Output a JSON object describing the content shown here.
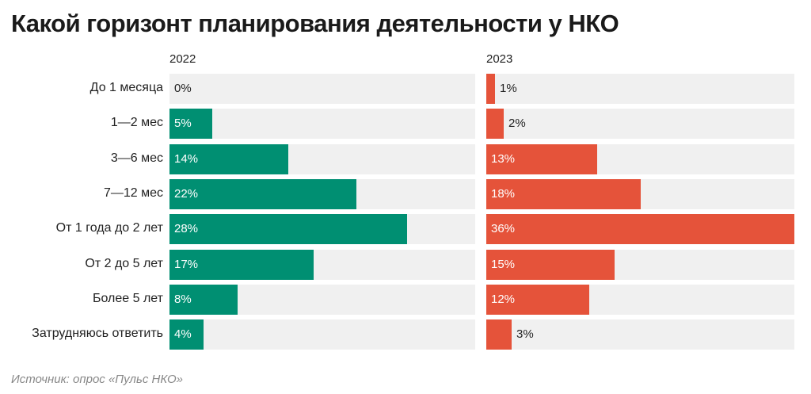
{
  "title": "Какой горизонт планирования деятельности у НКО",
  "source": "Источник: опрос «Пульс НКО»",
  "colors": {
    "2022": "#008f72",
    "2023": "#e5533a",
    "track": "#f0f0f0"
  },
  "chart_data": {
    "type": "bar",
    "orientation": "horizontal",
    "unit": "%",
    "xlim": [
      0,
      36
    ],
    "categories": [
      "До 1 месяца",
      "1—2 мес",
      "3—6 мес",
      "7—12 мес",
      "От 1 года до 2 лет",
      "От 2 до 5 лет",
      "Более 5 лет",
      "Затрудняюсь ответить"
    ],
    "series": [
      {
        "name": "2022",
        "values": [
          0,
          5,
          14,
          22,
          28,
          17,
          8,
          4
        ],
        "labels": [
          "0%",
          "5%",
          "14%",
          "22%",
          "28%",
          "17%",
          "8%",
          "4%"
        ]
      },
      {
        "name": "2023",
        "values": [
          1,
          2,
          13,
          18,
          36,
          15,
          12,
          3
        ],
        "labels": [
          "1%",
          "2%",
          "13%",
          "18%",
          "36%",
          "15%",
          "12%",
          "3%"
        ]
      }
    ]
  }
}
